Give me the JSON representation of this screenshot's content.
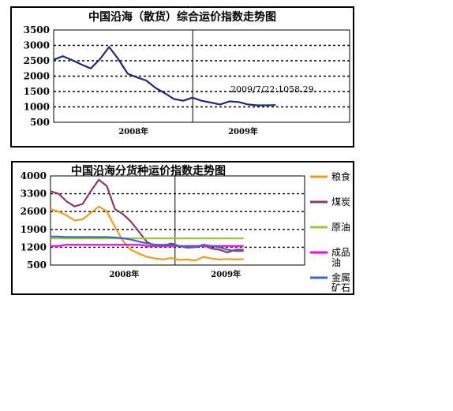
{
  "chart_data": [
    {
      "type": "line",
      "title": "中国沿海（散货）综合运价指数走势图",
      "xlabel": "",
      "ylabel": "",
      "ylim": [
        500,
        3500
      ],
      "yticks": [
        "3500",
        "3000",
        "2500",
        "2000",
        "1500",
        "1000",
        "500"
      ],
      "xtick_labels": [
        "2008年",
        "2009年"
      ],
      "x_period": [
        "2007-07",
        "2009-07"
      ],
      "grid": "dashed-horizontal",
      "series": [
        {
          "color": "#1f2a78",
          "x": [
            "2007-07",
            "2007-08",
            "2007-09",
            "2007-10",
            "2007-11",
            "2007-12",
            "2008-01",
            "2008-02",
            "2008-03",
            "2008-04",
            "2008-05",
            "2008-06",
            "2008-07",
            "2008-08",
            "2008-09",
            "2008-10",
            "2008-11",
            "2008-12",
            "2009-01",
            "2009-02",
            "2009-03",
            "2009-04",
            "2009-05",
            "2009-06",
            "2009-07"
          ],
          "values": [
            2530,
            2650,
            2520,
            2380,
            2250,
            2550,
            2950,
            2550,
            2080,
            1960,
            1860,
            1620,
            1450,
            1260,
            1200,
            1300,
            1200,
            1140,
            1080,
            1180,
            1160,
            1080,
            1050,
            1050,
            1058
          ]
        }
      ],
      "annotation": "2009/7/22:1058.29"
    },
    {
      "type": "line",
      "title": "中国沿海分货种运价指数走势图",
      "xlabel": "",
      "ylabel": "",
      "ylim": [
        500,
        4000
      ],
      "yticks": [
        "4000",
        "3300",
        "2600",
        "1900",
        "1200",
        "500"
      ],
      "xtick_labels": [
        "2008年",
        "2009年"
      ],
      "x_period": [
        "2007-07",
        "2009-07"
      ],
      "grid": "dashed-horizontal",
      "legend": "right",
      "x": [
        "2007-07",
        "2007-08",
        "2007-09",
        "2007-10",
        "2007-11",
        "2007-12",
        "2008-01",
        "2008-02",
        "2008-03",
        "2008-04",
        "2008-05",
        "2008-06",
        "2008-07",
        "2008-08",
        "2008-09",
        "2008-10",
        "2008-11",
        "2008-12",
        "2009-01",
        "2009-02",
        "2009-03",
        "2009-04",
        "2009-05",
        "2009-06",
        "2009-07"
      ],
      "series": [
        {
          "name": "粮食",
          "color": "#f39c1a",
          "values": [
            2700,
            2600,
            2450,
            2250,
            2300,
            2550,
            2800,
            2600,
            2000,
            1450,
            1100,
            950,
            820,
            760,
            720,
            780,
            700,
            720,
            680,
            820,
            760,
            720,
            740,
            720,
            740
          ]
        },
        {
          "name": "煤炭",
          "color": "#8b3a62",
          "values": [
            3400,
            3300,
            3000,
            2800,
            2900,
            3400,
            3850,
            3600,
            2700,
            2500,
            2200,
            1800,
            1400,
            1250,
            1250,
            1350,
            1250,
            1180,
            1200,
            1280,
            1150,
            1100,
            1000,
            1100,
            1100
          ]
        },
        {
          "name": "原油",
          "color": "#99cc33",
          "values": [
            1550,
            1550,
            1550,
            1550,
            1550,
            1550,
            1550,
            1550,
            1550,
            1550,
            1550,
            1550,
            1550,
            1550,
            1550,
            1550,
            1550,
            1550,
            1550,
            1550,
            1550,
            1550,
            1550,
            1550,
            1550
          ]
        },
        {
          "name": "成品油",
          "color": "#ff00ff",
          "values": [
            1250,
            1250,
            1300,
            1300,
            1300,
            1300,
            1300,
            1300,
            1300,
            1300,
            1300,
            1300,
            1250,
            1250,
            1250,
            1250,
            1250,
            1250,
            1250,
            1250,
            1250,
            1250,
            1250,
            1250,
            1250
          ]
        },
        {
          "name": "金属矿石",
          "color": "#3a66cc",
          "values": [
            1620,
            1620,
            1600,
            1600,
            1600,
            1600,
            1600,
            1600,
            1580,
            1550,
            1500,
            1420,
            1350,
            1300,
            1300,
            1300,
            1250,
            1200,
            1200,
            1300,
            1250,
            1200,
            1100,
            1050,
            1050
          ]
        }
      ]
    }
  ]
}
